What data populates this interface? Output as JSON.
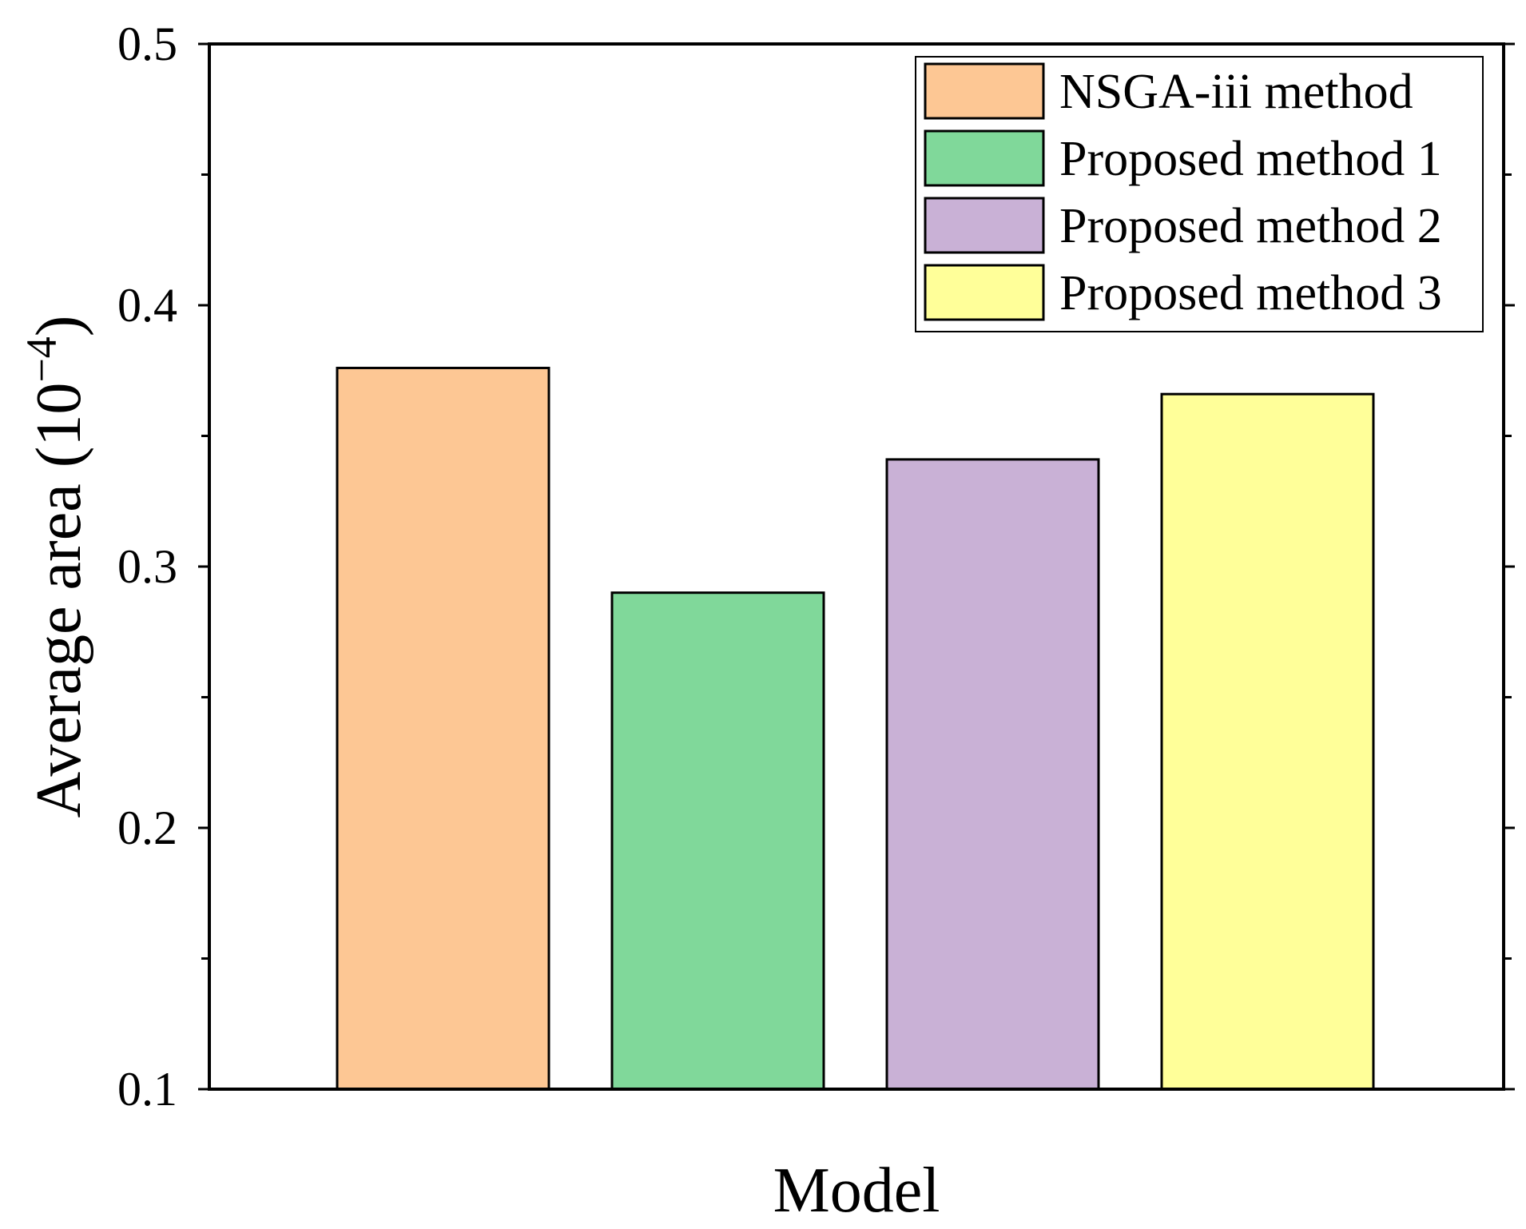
{
  "chart_data": {
    "type": "bar",
    "title": "",
    "xlabel": "Model",
    "ylabel": "Average area (10",
    "ylabel_sup": "−4",
    "ylabel_close": ")",
    "ylim": [
      0.1,
      0.5
    ],
    "yticks": [
      0.1,
      0.2,
      0.3,
      0.4,
      0.5
    ],
    "ytick_labels": [
      "0.1",
      "0.2",
      "0.3",
      "0.4",
      "0.5"
    ],
    "minor_ytick_step": 0.05,
    "legend_position": "top-right",
    "series": [
      {
        "name": "NSGA-iii method",
        "value": 0.376,
        "color": "#FDC794"
      },
      {
        "name": "Proposed method 1",
        "value": 0.29,
        "color": "#80D89A"
      },
      {
        "name": "Proposed method 2",
        "value": 0.341,
        "color": "#C9B1D6"
      },
      {
        "name": "Proposed method 3",
        "value": 0.366,
        "color": "#FFFF99"
      }
    ]
  }
}
